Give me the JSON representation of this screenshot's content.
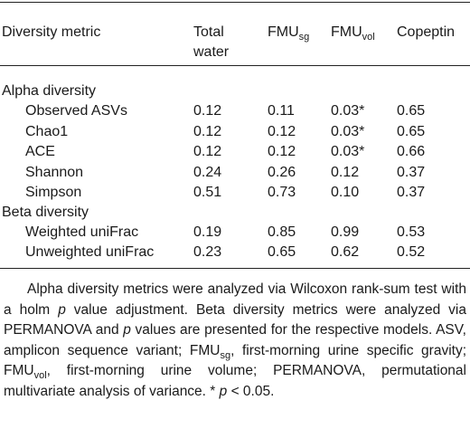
{
  "header": {
    "col0": "Diversity metric",
    "col1_line1": "Total",
    "col1_line2": "water",
    "col2_base": "FMU",
    "col2_sub": "sg",
    "col3_base": "FMU",
    "col3_sub": "vol",
    "col4": "Copeptin"
  },
  "sections": [
    {
      "title": "Alpha diversity",
      "rows": [
        {
          "metric": "Observed ASVs",
          "total_water": "0.12",
          "fmu_sg": "0.11",
          "fmu_vol": "0.03*",
          "copeptin": "0.65"
        },
        {
          "metric": "Chao1",
          "total_water": "0.12",
          "fmu_sg": "0.12",
          "fmu_vol": "0.03*",
          "copeptin": "0.65"
        },
        {
          "metric": "ACE",
          "total_water": "0.12",
          "fmu_sg": "0.12",
          "fmu_vol": "0.03*",
          "copeptin": "0.66"
        },
        {
          "metric": "Shannon",
          "total_water": "0.24",
          "fmu_sg": "0.26",
          "fmu_vol": "0.12",
          "copeptin": "0.37"
        },
        {
          "metric": "Simpson",
          "total_water": "0.51",
          "fmu_sg": "0.73",
          "fmu_vol": "0.10",
          "copeptin": "0.37"
        }
      ]
    },
    {
      "title": "Beta diversity",
      "rows": [
        {
          "metric": "Weighted uniFrac",
          "total_water": "0.19",
          "fmu_sg": "0.85",
          "fmu_vol": "0.99",
          "copeptin": "0.53"
        },
        {
          "metric": "Unweighted uniFrac",
          "total_water": "0.23",
          "fmu_sg": "0.65",
          "fmu_vol": "0.62",
          "copeptin": "0.52"
        }
      ]
    }
  ],
  "footnote": {
    "t1": "Alpha diversity metrics were analyzed via Wilcoxon rank-sum test with a holm ",
    "p1": "p",
    "t2": " value adjustment. Beta diversity metrics were analyzed via PERMANOVA and ",
    "p2": "p",
    "t3": " values are presented for the respective models. ASV, amplicon sequence variant; FMU",
    "sub_sg": "sg",
    "t4": ", first-morning urine specific gravity; FMU",
    "sub_vol": "vol",
    "t5": ", first-morning urine volume; PERMANOVA, permutational multivariate analysis of variance. * ",
    "p3": "p",
    "t6": " < 0.05."
  }
}
